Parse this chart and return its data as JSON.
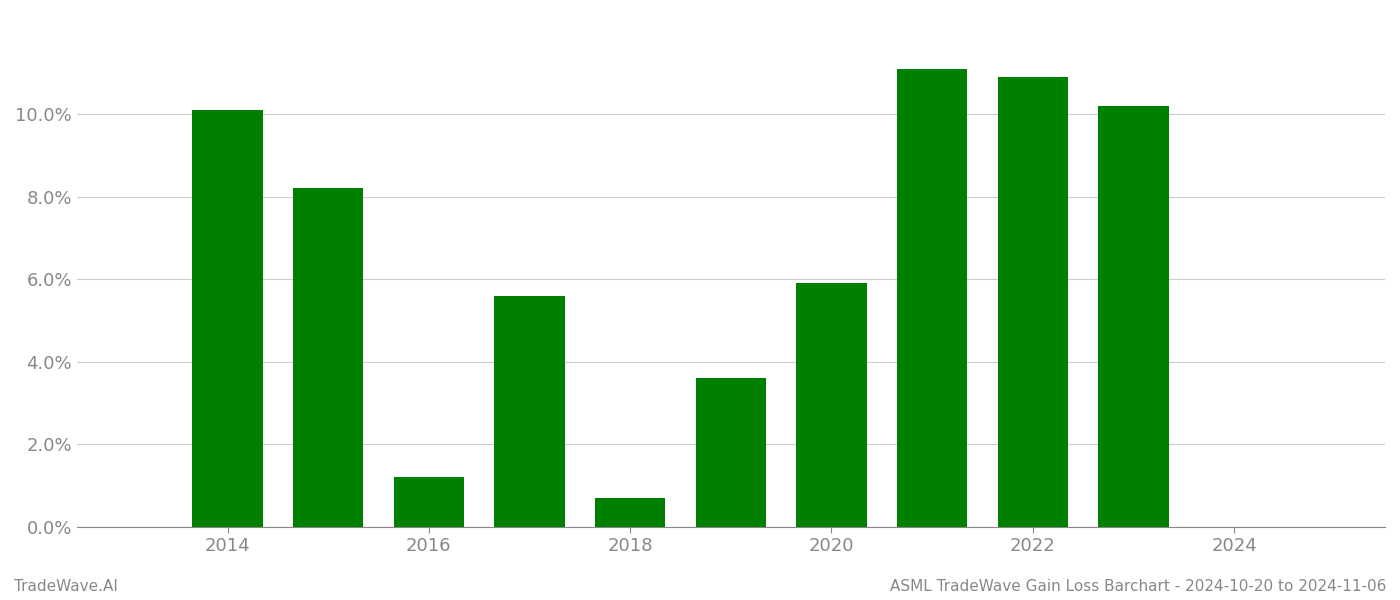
{
  "years": [
    2014,
    2015,
    2016,
    2017,
    2018,
    2019,
    2020,
    2021,
    2022,
    2023
  ],
  "values": [
    0.101,
    0.082,
    0.012,
    0.056,
    0.007,
    0.036,
    0.059,
    0.111,
    0.109,
    0.102
  ],
  "bar_color": "#008000",
  "background_color": "#ffffff",
  "grid_color": "#cccccc",
  "axis_color": "#888888",
  "tick_label_color": "#888888",
  "ylabel_ticks": [
    0.0,
    0.02,
    0.04,
    0.06,
    0.08,
    0.1
  ],
  "ylabel_labels": [
    "0.0%",
    "2.0%",
    "4.0%",
    "6.0%",
    "8.0%",
    "10.0%"
  ],
  "xlim": [
    2012.5,
    2025.5
  ],
  "ylim": [
    0,
    0.124
  ],
  "xtick_positions": [
    2014,
    2016,
    2018,
    2020,
    2022,
    2024
  ],
  "xtick_labels": [
    "2014",
    "2016",
    "2018",
    "2020",
    "2022",
    "2024"
  ],
  "footer_left": "TradeWave.AI",
  "footer_right": "ASML TradeWave Gain Loss Barchart - 2024-10-20 to 2024-11-06",
  "footer_color": "#888888",
  "bar_width": 0.7
}
